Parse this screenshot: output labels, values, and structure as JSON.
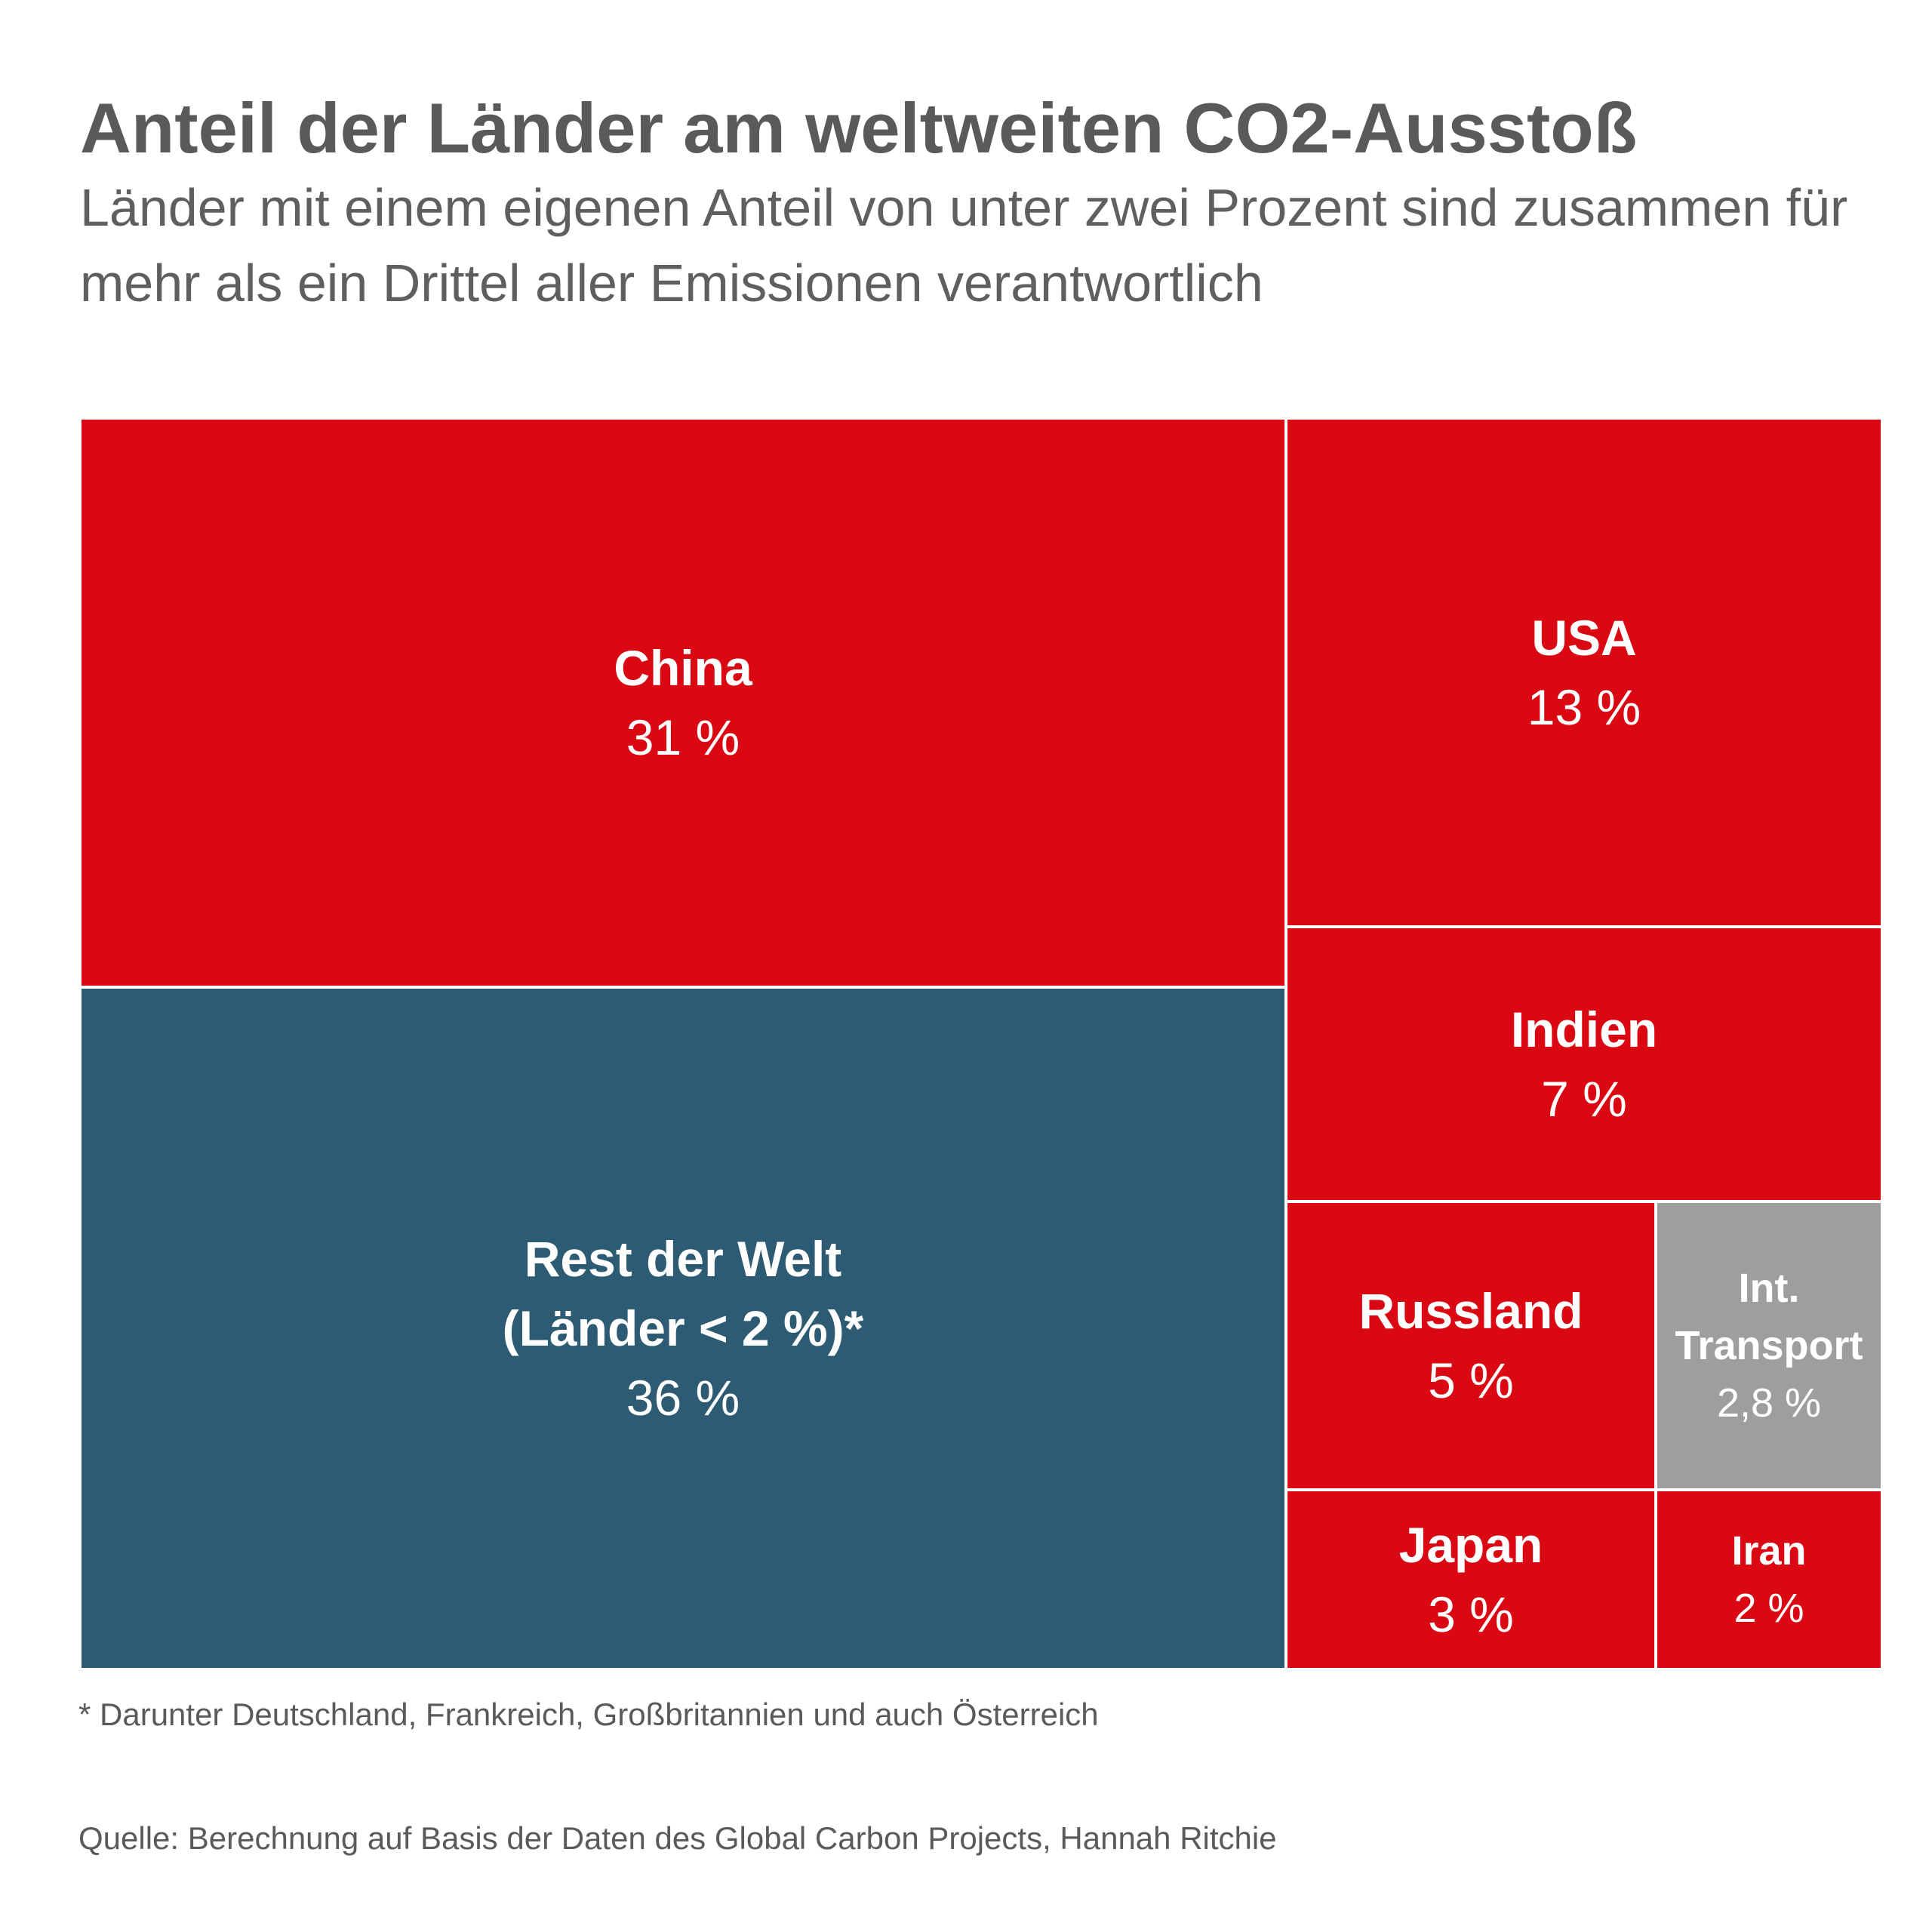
{
  "title": "Anteil der Länder am weltweiten CO2-Ausstoß",
  "subtitle": "Länder mit einem eigenen Anteil von unter zwei Prozent sind zusammen für mehr als ein Drittel aller Emissionen verantwortlich",
  "chart_data": {
    "type": "treemap",
    "unit": "%",
    "items": [
      {
        "label": "Rest der Welt\n(Länder < 2 %)*",
        "value": 36,
        "value_label": "36 %",
        "color": "#2c5b73"
      },
      {
        "label": "China",
        "value": 31,
        "value_label": "31 %",
        "color": "#d90812"
      },
      {
        "label": "USA",
        "value": 13,
        "value_label": "13 %",
        "color": "#d90812"
      },
      {
        "label": "Indien",
        "value": 7,
        "value_label": "7 %",
        "color": "#d90812"
      },
      {
        "label": "Russland",
        "value": 5,
        "value_label": "5 %",
        "color": "#d90812"
      },
      {
        "label": "Int.\nTransport",
        "value": 2.8,
        "value_label": "2,8 %",
        "color": "#9e9e9e"
      },
      {
        "label": "Japan",
        "value": 3,
        "value_label": "3 %",
        "color": "#d90812"
      },
      {
        "label": "Iran",
        "value": 2,
        "value_label": "2 %",
        "color": "#d90812"
      }
    ]
  },
  "footnote": "* Darunter Deutschland, Frankreich, Großbritannien und auch Österreich",
  "source": "Quelle: Berechnung auf Basis der Daten des Global Carbon Projects, Hannah Ritchie"
}
